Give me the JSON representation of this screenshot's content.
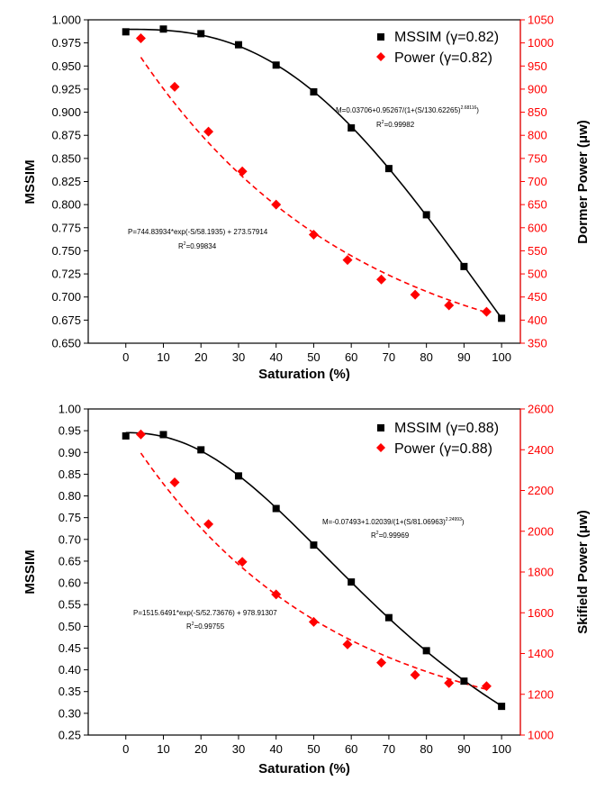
{
  "chart_data": [
    {
      "type": "scatter",
      "xlabel": "Saturation (%)",
      "ylabel_left": "MSSIM",
      "ylabel_right": "Dormer Power (μw)",
      "xlim": [
        -10,
        105
      ],
      "x_ticks": [
        0,
        10,
        20,
        30,
        40,
        50,
        60,
        70,
        80,
        90,
        100
      ],
      "ylim_left": [
        0.65,
        1.0
      ],
      "y_ticks_left": [
        "0.650",
        "0.675",
        "0.700",
        "0.725",
        "0.750",
        "0.775",
        "0.800",
        "0.825",
        "0.850",
        "0.875",
        "0.900",
        "0.925",
        "0.950",
        "0.975",
        "1.000"
      ],
      "ylim_right": [
        350,
        1050
      ],
      "y_ticks_right": [
        "350",
        "400",
        "450",
        "500",
        "550",
        "600",
        "650",
        "700",
        "750",
        "800",
        "850",
        "900",
        "950",
        "1000",
        "1050"
      ],
      "series": [
        {
          "name": "MSSIM (γ=0.82)",
          "axis": "left",
          "color": "#000000",
          "marker": "square",
          "x": [
            0,
            10,
            20,
            30,
            40,
            50,
            60,
            70,
            80,
            90,
            100
          ],
          "y": [
            0.987,
            0.99,
            0.985,
            0.973,
            0.951,
            0.922,
            0.883,
            0.839,
            0.789,
            0.733,
            0.677
          ],
          "fit": "solid",
          "fit_params": {
            "a": 0.03706,
            "b": 0.95267,
            "c": 130.62265,
            "d": 2.68116
          }
        },
        {
          "name": "Power (γ=0.82)",
          "axis": "right",
          "color": "#ff0000",
          "marker": "diamond",
          "x": [
            4,
            13,
            22,
            31,
            40,
            50,
            59,
            68,
            77,
            86,
            96
          ],
          "y": [
            1010,
            905,
            808,
            722,
            650,
            585,
            530,
            488,
            455,
            432,
            418
          ],
          "fit": "dashed",
          "fit_params": {
            "a": 744.83934,
            "b": 58.1935,
            "c": 273.57914
          }
        }
      ],
      "annotations": {
        "msim_eq": "M=0.03706+0.95267/(1+(S/130.62265)",
        "msim_exp": "2.68116",
        "msim_eq_end": ")",
        "msim_r2": "R",
        "msim_r2_sup": "2",
        "msim_r2_val": "=0.99982",
        "power_eq": "P=744.83934*exp(-S/58.1935) + 273.57914",
        "power_r2": "R",
        "power_r2_sup": "2",
        "power_r2_val": "=0.99834"
      }
    },
    {
      "type": "scatter",
      "xlabel": "Saturation (%)",
      "ylabel_left": "MSSIM",
      "ylabel_right": "Skifield Power (μw)",
      "xlim": [
        -10,
        105
      ],
      "x_ticks": [
        0,
        10,
        20,
        30,
        40,
        50,
        60,
        70,
        80,
        90,
        100
      ],
      "ylim_left": [
        0.25,
        1.0
      ],
      "y_ticks_left": [
        "0.25",
        "0.30",
        "0.35",
        "0.40",
        "0.45",
        "0.50",
        "0.55",
        "0.60",
        "0.65",
        "0.70",
        "0.75",
        "0.80",
        "0.85",
        "0.90",
        "0.95",
        "1.00"
      ],
      "ylim_right": [
        1000,
        2600
      ],
      "y_ticks_right": [
        "1000",
        "1200",
        "1400",
        "1600",
        "1800",
        "2000",
        "2200",
        "2400",
        "2600"
      ],
      "series": [
        {
          "name": "MSSIM (γ=0.88)",
          "axis": "left",
          "color": "#000000",
          "marker": "square",
          "x": [
            0,
            10,
            20,
            30,
            40,
            50,
            60,
            70,
            80,
            90,
            100
          ],
          "y": [
            0.938,
            0.941,
            0.906,
            0.846,
            0.771,
            0.687,
            0.602,
            0.52,
            0.444,
            0.374,
            0.316
          ],
          "fit": "solid",
          "fit_params": {
            "a": -0.07493,
            "b": 1.02039,
            "c": 81.06963,
            "d": 2.24993
          }
        },
        {
          "name": "Power (γ=0.88)",
          "axis": "right",
          "color": "#ff0000",
          "marker": "diamond",
          "x": [
            4,
            13,
            22,
            31,
            40,
            50,
            59,
            68,
            77,
            86,
            96
          ],
          "y": [
            2475,
            2240,
            2035,
            1850,
            1690,
            1555,
            1445,
            1355,
            1295,
            1255,
            1240
          ],
          "fit": "dashed",
          "fit_params": {
            "a": 1515.6491,
            "b": 52.73676,
            "c": 978.91307
          }
        }
      ],
      "annotations": {
        "msim_eq": "M=-0.07493+1.02039/(1+(S/81.06963)",
        "msim_exp": "2.24993",
        "msim_eq_end": ")",
        "msim_r2": "R",
        "msim_r2_sup": "2",
        "msim_r2_val": "=0.99969",
        "power_eq": "P=1515.6491*exp(-S/52.73676) + 978.91307",
        "power_r2": "R",
        "power_r2_sup": "2",
        "power_r2_val": "=0.99755"
      }
    }
  ]
}
